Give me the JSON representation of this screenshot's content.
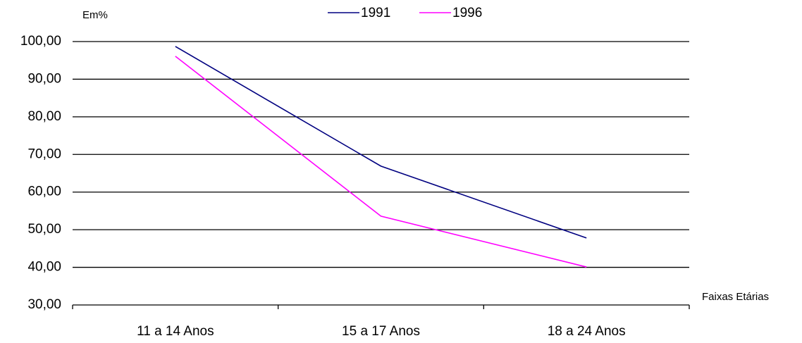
{
  "chart_data": {
    "type": "line",
    "y_axis_label": "Em%",
    "x_axis_label": "Faixas Etárias",
    "categories": [
      "11 a 14 Anos",
      "15 a 17 Anos",
      "18 a 24 Anos"
    ],
    "series": [
      {
        "name": "1991",
        "color": "#000080",
        "values": [
          98.7,
          66.9,
          47.8
        ]
      },
      {
        "name": "1996",
        "color": "#ff00ff",
        "values": [
          96.1,
          53.6,
          40.1
        ]
      }
    ],
    "ylim": [
      30,
      100
    ],
    "yticks": [
      {
        "value": 30,
        "label": "30,00"
      },
      {
        "value": 40,
        "label": "40,00"
      },
      {
        "value": 50,
        "label": "50,00"
      },
      {
        "value": 60,
        "label": "60,00"
      },
      {
        "value": 70,
        "label": "70,00"
      },
      {
        "value": 80,
        "label": "80,00"
      },
      {
        "value": 90,
        "label": "90,00"
      },
      {
        "value": 100,
        "label": "100,00"
      }
    ],
    "grid": true,
    "legend": "top"
  }
}
